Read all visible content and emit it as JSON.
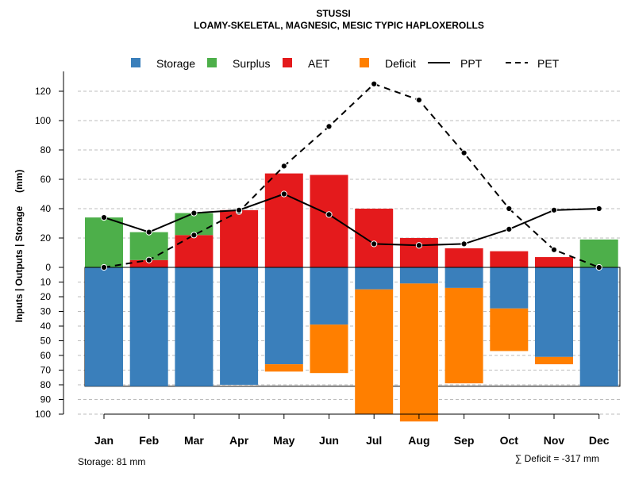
{
  "chart_data": {
    "type": "bar",
    "title": "STUSSI",
    "subtitle": "LOAMY-SKELETAL, MAGNESIC, MESIC TYPIC HAPLOXEROLLS",
    "ylabel": "Inputs | Outputs | Storage     (mm)",
    "categories": [
      "Jan",
      "Feb",
      "Mar",
      "Apr",
      "May",
      "Jun",
      "Jul",
      "Aug",
      "Sep",
      "Oct",
      "Nov",
      "Dec"
    ],
    "upper_ticks": [
      "0",
      "20",
      "40",
      "60",
      "80",
      "100",
      "120"
    ],
    "lower_ticks": [
      "10",
      "20",
      "30",
      "40",
      "50",
      "60",
      "70",
      "80",
      "90",
      "100"
    ],
    "ylim_upper": [
      0,
      130
    ],
    "ylim_lower": [
      0,
      100
    ],
    "legend": {
      "storage": "Storage",
      "surplus": "Surplus",
      "aet": "AET",
      "deficit": "Deficit",
      "ppt": "PPT",
      "pet": "PET"
    },
    "colors": {
      "storage": "#3a7fbb",
      "surplus": "#4daf4a",
      "aet": "#e41a1c",
      "deficit": "#ff7f00"
    },
    "series": [
      {
        "name": "AET",
        "values": [
          0,
          5,
          22,
          39,
          64,
          63,
          40,
          20,
          13,
          11,
          7,
          0
        ]
      },
      {
        "name": "Surplus",
        "values": [
          34,
          19,
          15,
          0,
          0,
          0,
          0,
          0,
          0,
          0,
          0,
          19
        ]
      },
      {
        "name": "Storage",
        "values": [
          81,
          81,
          81,
          80,
          66,
          39,
          15,
          11,
          14,
          28,
          61,
          81
        ]
      },
      {
        "name": "Deficit",
        "values": [
          0,
          0,
          0,
          0,
          5,
          33,
          85,
          94,
          65,
          29,
          5,
          0
        ]
      },
      {
        "name": "PPT",
        "values": [
          34,
          24,
          37,
          39,
          50,
          36,
          16,
          15,
          16,
          26,
          39,
          40
        ]
      },
      {
        "name": "PET",
        "values": [
          0,
          5,
          22,
          38,
          69,
          96,
          125,
          114,
          78,
          40,
          12,
          0
        ]
      }
    ],
    "storage_capacity": 81,
    "footer_left": "Storage: 81 mm",
    "footer_right": "∑ Deficit = -317 mm"
  }
}
